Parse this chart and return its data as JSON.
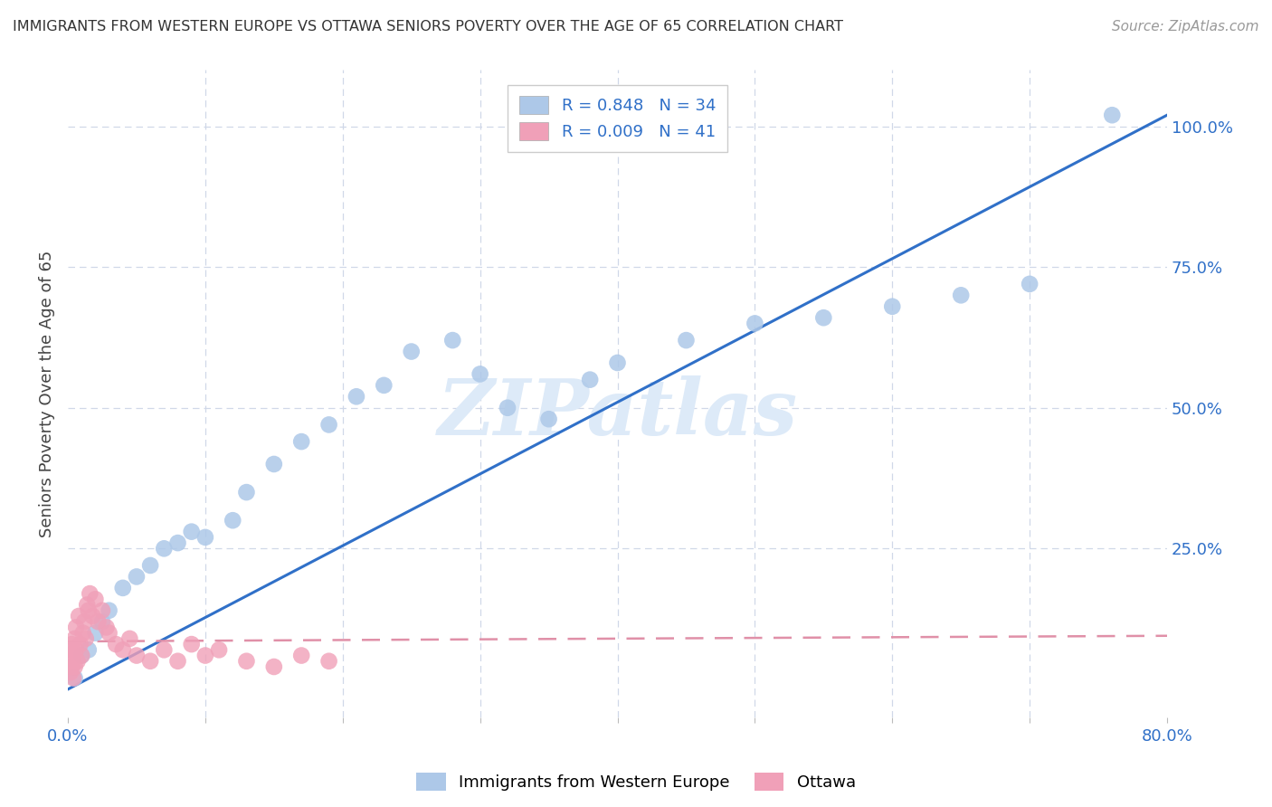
{
  "title": "IMMIGRANTS FROM WESTERN EUROPE VS OTTAWA SENIORS POVERTY OVER THE AGE OF 65 CORRELATION CHART",
  "source": "Source: ZipAtlas.com",
  "ylabel": "Seniors Poverty Over the Age of 65",
  "watermark": "ZIPatlas",
  "blue_R": 0.848,
  "blue_N": 34,
  "pink_R": 0.009,
  "pink_N": 41,
  "blue_color": "#adc8e8",
  "blue_line_color": "#3070c8",
  "pink_color": "#f0a0b8",
  "pink_line_color": "#d06080",
  "pink_dash_color": "#e090a8",
  "background_color": "#ffffff",
  "grid_color": "#d0d8e8",
  "blue_x": [
    0.005,
    0.01,
    0.015,
    0.02,
    0.025,
    0.03,
    0.04,
    0.05,
    0.06,
    0.07,
    0.08,
    0.09,
    0.1,
    0.12,
    0.13,
    0.15,
    0.17,
    0.19,
    0.21,
    0.23,
    0.25,
    0.28,
    0.3,
    0.32,
    0.35,
    0.38,
    0.4,
    0.45,
    0.5,
    0.55,
    0.6,
    0.65,
    0.7,
    0.76
  ],
  "blue_y": [
    0.02,
    0.06,
    0.07,
    0.1,
    0.12,
    0.14,
    0.18,
    0.2,
    0.22,
    0.25,
    0.26,
    0.28,
    0.27,
    0.3,
    0.35,
    0.4,
    0.44,
    0.47,
    0.52,
    0.54,
    0.6,
    0.62,
    0.56,
    0.5,
    0.48,
    0.55,
    0.58,
    0.62,
    0.65,
    0.66,
    0.68,
    0.7,
    0.72,
    1.02
  ],
  "pink_x": [
    0.001,
    0.002,
    0.002,
    0.003,
    0.003,
    0.004,
    0.004,
    0.005,
    0.005,
    0.006,
    0.006,
    0.007,
    0.008,
    0.009,
    0.01,
    0.011,
    0.012,
    0.013,
    0.014,
    0.015,
    0.016,
    0.018,
    0.02,
    0.022,
    0.025,
    0.028,
    0.03,
    0.035,
    0.04,
    0.045,
    0.05,
    0.06,
    0.07,
    0.08,
    0.09,
    0.1,
    0.11,
    0.13,
    0.15,
    0.17,
    0.19
  ],
  "pink_y": [
    0.05,
    0.03,
    0.07,
    0.04,
    0.08,
    0.02,
    0.06,
    0.09,
    0.04,
    0.07,
    0.11,
    0.05,
    0.13,
    0.08,
    0.06,
    0.1,
    0.12,
    0.09,
    0.15,
    0.14,
    0.17,
    0.13,
    0.16,
    0.12,
    0.14,
    0.11,
    0.1,
    0.08,
    0.07,
    0.09,
    0.06,
    0.05,
    0.07,
    0.05,
    0.08,
    0.06,
    0.07,
    0.05,
    0.04,
    0.06,
    0.05
  ],
  "blue_line_x": [
    0.0,
    0.8
  ],
  "blue_line_y": [
    0.0,
    1.02
  ],
  "pink_line_x": [
    0.0,
    0.8
  ],
  "pink_line_y": [
    0.085,
    0.095
  ],
  "xlim": [
    0.0,
    0.8
  ],
  "ylim": [
    -0.05,
    1.1
  ],
  "xtick_pos": [
    0.0,
    0.1,
    0.2,
    0.3,
    0.4,
    0.5,
    0.6,
    0.7,
    0.8
  ],
  "xtick_labels": [
    "0.0%",
    "",
    "",
    "",
    "",
    "",
    "",
    "",
    "80.0%"
  ],
  "ytick_pos": [
    0.0,
    0.25,
    0.5,
    0.75,
    1.0
  ],
  "ytick_labels": [
    "",
    "25.0%",
    "50.0%",
    "75.0%",
    "100.0%"
  ],
  "legend_label_blue": "Immigrants from Western Europe",
  "legend_label_pink": "Ottawa",
  "title_fontsize": 11.5,
  "source_fontsize": 11,
  "axis_fontsize": 13,
  "legend_fontsize": 13
}
